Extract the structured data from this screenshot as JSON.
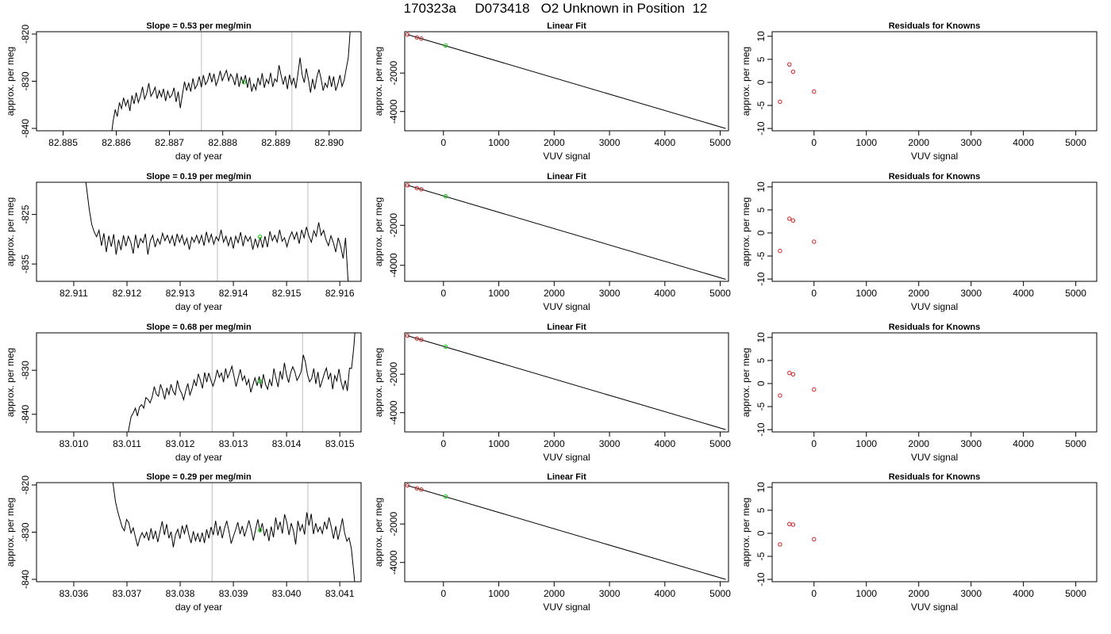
{
  "figure": {
    "title": "170323a     D073418   O2 Unknown in Position  12"
  },
  "chart_data": [
    {
      "row": 0,
      "type": "line",
      "title": "Slope =  0.53  per meg/min",
      "xlabel": "day of year",
      "ylabel": "approx. per meg",
      "xlim": [
        82.8845,
        82.8906
      ],
      "ylim": [
        -840.5,
        -819.5
      ],
      "xticks": [
        82.885,
        82.886,
        82.887,
        82.888,
        82.889,
        82.89
      ],
      "yticks": [
        -840,
        -830,
        -820
      ],
      "vlines": [
        82.8876,
        82.8893
      ],
      "marker": {
        "x": 82.8884,
        "y": -830.2,
        "color": "#00cc00"
      },
      "x_start": 82.8859,
      "x_end": 82.8904,
      "y": [
        -842,
        -838.5,
        -836,
        -837.5,
        -834.5,
        -835.8,
        -833.5,
        -835.2,
        -834,
        -836.3,
        -833,
        -834.8,
        -832.4,
        -834.5,
        -833.2,
        -831.2,
        -833.8,
        -832.6,
        -830.4,
        -833.2,
        -832.4,
        -831.3,
        -833.7,
        -832,
        -833.3,
        -831.6,
        -834.2,
        -832.1,
        -833.5,
        -832.9,
        -831.4,
        -834.4,
        -832.2,
        -835.7,
        -832.8,
        -830.1,
        -832,
        -830.4,
        -832.2,
        -829.4,
        -831.6,
        -830.8,
        -829,
        -831.3,
        -828.7,
        -830.7,
        -829.9,
        -828.2,
        -830.2,
        -828.4,
        -830.9,
        -829.7,
        -827.8,
        -829.9,
        -828.7,
        -827.7,
        -829.9,
        -828.5,
        -829.3,
        -830.8,
        -828.3,
        -831.2,
        -829.1,
        -830.4,
        -828.7,
        -831.4,
        -829.2,
        -832.2,
        -830.6,
        -831.8,
        -829.3,
        -830.8,
        -828.3,
        -831.4,
        -829.6,
        -830.5,
        -828.2,
        -831.2,
        -829.5,
        -830.1,
        -826.6,
        -828.7,
        -830.7,
        -828.9,
        -831.7,
        -828.6,
        -830.7,
        -829.3,
        -831.5,
        -828.5,
        -825,
        -828.6,
        -830.3,
        -827.3,
        -829.7,
        -832.4,
        -829.5,
        -831.7,
        -829.2,
        -827.5,
        -829.4,
        -832,
        -830.4,
        -831.3,
        -828.8,
        -831.2,
        -829,
        -832,
        -830.6,
        -828.7,
        -831.1,
        -829.8,
        -827.3,
        -825,
        -818.5
      ]
    },
    {
      "row": 0,
      "type": "scatter",
      "title": "Linear Fit",
      "xlabel": "VUV signal",
      "ylabel": "approx. per meg",
      "xlim": [
        -700,
        5150
      ],
      "ylim": [
        -5000,
        150
      ],
      "xticks": [
        0,
        1000,
        2000,
        3000,
        4000,
        5000
      ],
      "yticks": [
        -4000,
        -2000
      ],
      "line": [
        [
          -650,
          0
        ],
        [
          5100,
          -4880
        ]
      ],
      "knowns": [
        [
          -650,
          0
        ],
        [
          -480,
          -145
        ],
        [
          -400,
          -210
        ]
      ],
      "unknowns": [
        [
          40,
          -570
        ]
      ]
    },
    {
      "row": 0,
      "type": "scatter",
      "title": "Residuals for Knowns",
      "xlabel": "VUV signal",
      "ylabel": "approx. per meg",
      "xlim": [
        -800,
        5400
      ],
      "ylim": [
        -10.5,
        11
      ],
      "xticks": [
        0,
        1000,
        2000,
        3000,
        4000,
        5000
      ],
      "yticks": [
        -10,
        -5,
        0,
        5,
        10
      ],
      "knowns": [
        [
          -650,
          -4.2
        ],
        [
          -470,
          3.9
        ],
        [
          -400,
          2.3
        ],
        [
          0,
          -2.0
        ]
      ]
    },
    {
      "row": 1,
      "type": "line",
      "title": "Slope =  0.19  per meg/min",
      "xlabel": "day of year",
      "ylabel": "approx. per meg",
      "xlim": [
        82.9103,
        82.9164
      ],
      "ylim": [
        -838.5,
        -818.5
      ],
      "xticks": [
        82.911,
        82.912,
        82.913,
        82.914,
        82.915,
        82.916
      ],
      "yticks": [
        -835,
        -825
      ],
      "vlines": [
        82.9137,
        82.9154
      ],
      "marker": {
        "x": 82.9145,
        "y": -829.5,
        "color": "#00cc00"
      },
      "x_start": 82.9112,
      "x_end": 82.9162,
      "y": [
        -816,
        -820,
        -824,
        -827,
        -828.5,
        -829.5,
        -828.2,
        -831.3,
        -828.8,
        -832.6,
        -829.3,
        -831.5,
        -829,
        -833.1,
        -830.1,
        -832.2,
        -829.2,
        -831.4,
        -829.4,
        -830.6,
        -832.9,
        -829.1,
        -831.8,
        -829.9,
        -830.7,
        -828.9,
        -833.1,
        -830.3,
        -829.2,
        -831.6,
        -829.9,
        -831,
        -828.8,
        -830.3,
        -829.2,
        -830.8,
        -829.3,
        -831.4,
        -828.9,
        -830.6,
        -829.2,
        -831.1,
        -829.8,
        -832.1,
        -829.6,
        -830.6,
        -829.2,
        -830.8,
        -829.2,
        -831.3,
        -828.5,
        -830.6,
        -829,
        -831,
        -829.5,
        -830.3,
        -828.1,
        -830.6,
        -829.4,
        -831.3,
        -829.5,
        -831.9,
        -829.4,
        -830.7,
        -828.6,
        -831.4,
        -829.3,
        -830.4,
        -829.5,
        -832.1,
        -829.9,
        -831.6,
        -829.6,
        -831.7,
        -829.4,
        -831.6,
        -828.4,
        -830.3,
        -829.2,
        -830.6,
        -828.1,
        -830.4,
        -829.7,
        -831.5,
        -829.7,
        -828.5,
        -830,
        -828.6,
        -830.9,
        -828.1,
        -829.7,
        -827.5,
        -829.4,
        -830.6,
        -828.3,
        -829.4,
        -826.6,
        -829.2,
        -828.2,
        -830.1,
        -831.3,
        -829.3,
        -830.7,
        -832.6,
        -829.7,
        -831.4,
        -833.9,
        -829.7,
        -838,
        -842
      ]
    },
    {
      "row": 1,
      "type": "scatter",
      "title": "Linear Fit",
      "xlabel": "VUV signal",
      "ylabel": "approx. per meg",
      "xlim": [
        -700,
        5150
      ],
      "ylim": [
        -4800,
        150
      ],
      "xticks": [
        0,
        1000,
        2000,
        3000,
        4000,
        5000
      ],
      "yticks": [
        -4000,
        -2000
      ],
      "line": [
        [
          -650,
          0
        ],
        [
          5100,
          -4700
        ]
      ],
      "knowns": [
        [
          -650,
          0
        ],
        [
          -480,
          -140
        ],
        [
          -400,
          -200
        ]
      ],
      "unknowns": [
        [
          40,
          -550
        ]
      ]
    },
    {
      "row": 1,
      "type": "scatter",
      "title": "Residuals for Knowns",
      "xlabel": "VUV signal",
      "ylabel": "approx. per meg",
      "xlim": [
        -800,
        5400
      ],
      "ylim": [
        -10.5,
        11
      ],
      "xticks": [
        0,
        1000,
        2000,
        3000,
        4000,
        5000
      ],
      "yticks": [
        -10,
        -5,
        0,
        5,
        10
      ],
      "knowns": [
        [
          -650,
          -3.9
        ],
        [
          -470,
          3.1
        ],
        [
          -400,
          2.7
        ],
        [
          0,
          -1.9
        ]
      ]
    },
    {
      "row": 2,
      "type": "line",
      "title": "Slope =  0.68  per meg/min",
      "xlabel": "day of year",
      "ylabel": "approx. per meg",
      "xlim": [
        83.0093,
        83.0154
      ],
      "ylim": [
        -844,
        -821.5
      ],
      "xticks": [
        83.01,
        83.011,
        83.012,
        83.013,
        83.014,
        83.015
      ],
      "yticks": [
        -840,
        -830
      ],
      "vlines": [
        83.0126,
        83.0143
      ],
      "marker": {
        "x": 83.0135,
        "y": -832.5,
        "color": "#00cc00"
      },
      "x_start": 83.011,
      "x_end": 83.0153,
      "y": [
        -846,
        -843,
        -840.5,
        -839.7,
        -838.6,
        -840.4,
        -838.3,
        -837.8,
        -838.6,
        -836.2,
        -836.6,
        -837.4,
        -836.1,
        -833.7,
        -835.4,
        -835.9,
        -833.2,
        -834.6,
        -836.6,
        -834,
        -835.5,
        -833.2,
        -834.8,
        -835.6,
        -832.3,
        -834.2,
        -835.2,
        -836.7,
        -834.7,
        -833,
        -835.6,
        -834.2,
        -832.2,
        -833.6,
        -830.8,
        -832.3,
        -834.1,
        -830.5,
        -832.7,
        -830.6,
        -832.3,
        -833.6,
        -832.1,
        -829.9,
        -831.6,
        -830.6,
        -832.7,
        -829.6,
        -831.7,
        -830.5,
        -829.1,
        -831.4,
        -833.7,
        -831.7,
        -829.8,
        -832.3,
        -831.3,
        -833.3,
        -832.1,
        -835,
        -833.3,
        -831.7,
        -833.5,
        -831.4,
        -834.1,
        -830.9,
        -833.2,
        -834.3,
        -832.1,
        -833.6,
        -829.6,
        -831.9,
        -833.8,
        -830.2,
        -832.1,
        -828.3,
        -831,
        -832.8,
        -830.5,
        -829.2,
        -830.4,
        -832.3,
        -831.4,
        -830.3,
        -826.5,
        -828.1,
        -831,
        -832.6,
        -831.9,
        -829.6,
        -833.1,
        -830.4,
        -833.9,
        -832.4,
        -830.8,
        -829.5,
        -832.1,
        -830.6,
        -834.3,
        -831.2,
        -832.4,
        -829.7,
        -832.6,
        -834.3,
        -832.3,
        -834.7,
        -829.5,
        -829.6,
        -825,
        -819
      ]
    },
    {
      "row": 2,
      "type": "scatter",
      "title": "Linear Fit",
      "xlabel": "VUV signal",
      "ylabel": "approx. per meg",
      "xlim": [
        -700,
        5150
      ],
      "ylim": [
        -5000,
        150
      ],
      "xticks": [
        0,
        1000,
        2000,
        3000,
        4000,
        5000
      ],
      "yticks": [
        -4000,
        -2000
      ],
      "line": [
        [
          -650,
          0
        ],
        [
          5100,
          -4880
        ]
      ],
      "knowns": [
        [
          -650,
          0
        ],
        [
          -480,
          -145
        ],
        [
          -400,
          -210
        ]
      ],
      "unknowns": [
        [
          40,
          -570
        ]
      ]
    },
    {
      "row": 2,
      "type": "scatter",
      "title": "Residuals for Knowns",
      "xlabel": "VUV signal",
      "ylabel": "approx. per meg",
      "xlim": [
        -800,
        5400
      ],
      "ylim": [
        -10.5,
        11
      ],
      "xticks": [
        0,
        1000,
        2000,
        3000,
        4000,
        5000
      ],
      "yticks": [
        -10,
        -5,
        0,
        5,
        10
      ],
      "knowns": [
        [
          -650,
          -2.6
        ],
        [
          -470,
          2.3
        ],
        [
          -400,
          2.0
        ],
        [
          0,
          -1.3
        ]
      ]
    },
    {
      "row": 3,
      "type": "line",
      "title": "Slope =  0.29  per meg/min",
      "xlabel": "day of year",
      "ylabel": "approx. per meg",
      "xlim": [
        83.0353,
        83.0414
      ],
      "ylim": [
        -840.5,
        -819.5
      ],
      "xticks": [
        83.036,
        83.037,
        83.038,
        83.039,
        83.04,
        83.041
      ],
      "yticks": [
        -840,
        -830,
        -820
      ],
      "vlines": [
        83.0386,
        83.0404
      ],
      "marker": {
        "x": 83.0395,
        "y": -829.6,
        "color": "#00cc00"
      },
      "x_start": 83.0367,
      "x_end": 83.0413,
      "y": [
        -816,
        -820,
        -823.5,
        -825.6,
        -827.3,
        -828.9,
        -829.7,
        -827.3,
        -828,
        -830.2,
        -829.1,
        -831.1,
        -833,
        -831.2,
        -830.1,
        -831.2,
        -830,
        -831.8,
        -829.2,
        -831.5,
        -829.7,
        -832.1,
        -829.9,
        -827.7,
        -830.6,
        -828.3,
        -831.3,
        -829.9,
        -833.2,
        -830.5,
        -829.4,
        -831.4,
        -828.6,
        -830.3,
        -828.4,
        -830.6,
        -832.3,
        -829.8,
        -831.8,
        -830.3,
        -832.1,
        -830.1,
        -832.3,
        -829.4,
        -831.3,
        -828.9,
        -830.6,
        -827.6,
        -830.7,
        -828.7,
        -831.3,
        -829.2,
        -827.6,
        -829.8,
        -832.4,
        -830.9,
        -829.5,
        -827.9,
        -830.4,
        -828.7,
        -830.9,
        -829.3,
        -827.5,
        -829.5,
        -831.8,
        -829.4,
        -827.3,
        -829.9,
        -828.1,
        -830.8,
        -829.3,
        -831.9,
        -828.8,
        -831.1,
        -826.9,
        -829.5,
        -827.8,
        -830.3,
        -826.2,
        -827.9,
        -830.6,
        -828.1,
        -829.7,
        -832.6,
        -827.6,
        -829.7,
        -828.4,
        -830.5,
        -825.8,
        -828.6,
        -826.1,
        -830.4,
        -828.1,
        -829.9,
        -828.9,
        -830.3,
        -827.8,
        -829.4,
        -826.9,
        -828.9,
        -831.4,
        -828.7,
        -831.6,
        -829.5,
        -827.1,
        -830.2,
        -831.9,
        -831.2,
        -833.4,
        -838,
        -843
      ]
    },
    {
      "row": 3,
      "type": "scatter",
      "title": "Linear Fit",
      "xlabel": "VUV signal",
      "ylabel": "approx. per meg",
      "xlim": [
        -700,
        5150
      ],
      "ylim": [
        -5000,
        150
      ],
      "xticks": [
        0,
        1000,
        2000,
        3000,
        4000,
        5000
      ],
      "yticks": [
        -4000,
        -2000
      ],
      "line": [
        [
          -650,
          0
        ],
        [
          5100,
          -4880
        ]
      ],
      "knowns": [
        [
          -650,
          0
        ],
        [
          -480,
          -145
        ],
        [
          -400,
          -210
        ]
      ],
      "unknowns": [
        [
          40,
          -570
        ]
      ]
    },
    {
      "row": 3,
      "type": "scatter",
      "title": "Residuals for Knowns",
      "xlabel": "VUV signal",
      "ylabel": "approx. per meg",
      "xlim": [
        -800,
        5400
      ],
      "ylim": [
        -10.5,
        11
      ],
      "xticks": [
        0,
        1000,
        2000,
        3000,
        4000,
        5000
      ],
      "yticks": [
        -10,
        -5,
        0,
        5,
        10
      ],
      "knowns": [
        [
          -650,
          -2.4
        ],
        [
          -470,
          2.0
        ],
        [
          -400,
          1.9
        ],
        [
          0,
          -1.3
        ]
      ]
    }
  ]
}
